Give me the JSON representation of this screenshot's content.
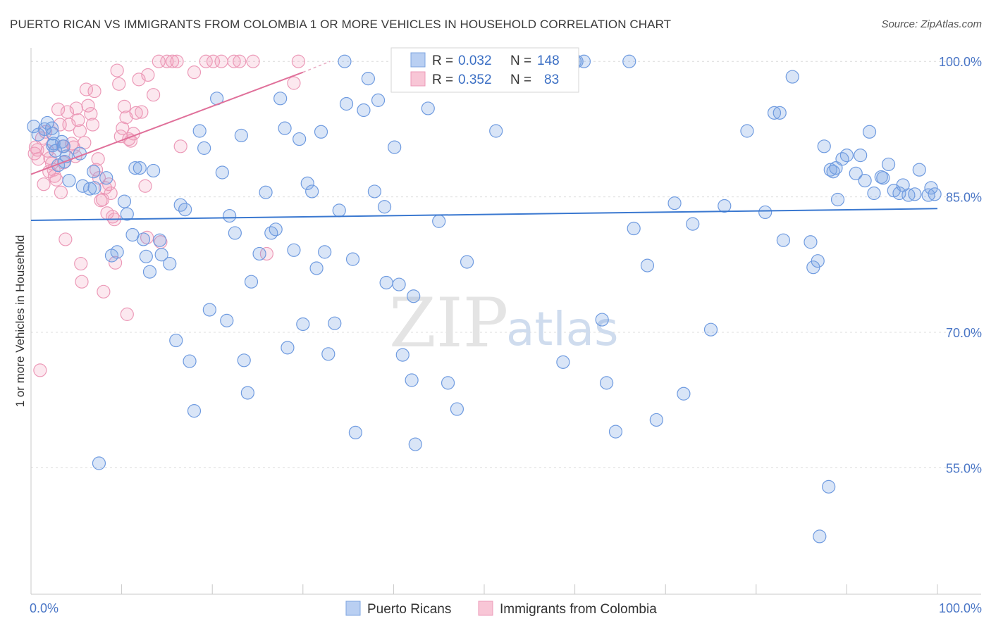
{
  "chart_data": {
    "type": "scatter",
    "title": "PUERTO RICAN VS IMMIGRANTS FROM COLOMBIA 1 OR MORE VEHICLES IN HOUSEHOLD CORRELATION CHART",
    "source": "Source: ZipAtlas.com",
    "xlabel": "",
    "ylabel": "1 or more Vehicles in Household",
    "xlim": [
      0,
      100
    ],
    "ylim": [
      41,
      101.5
    ],
    "x_tick_labels": {
      "left": "0.0%",
      "right": "100.0%"
    },
    "y_ticks": [
      {
        "value": 100,
        "label": "100.0%"
      },
      {
        "value": 85,
        "label": "85.0%"
      },
      {
        "value": 70,
        "label": "70.0%"
      },
      {
        "value": 55,
        "label": "55.0%"
      }
    ],
    "watermark": {
      "zip": "ZIP",
      "atlas": "atlas"
    },
    "colors": {
      "blue": "#6f9be0",
      "blue_line": "#3a78d0",
      "pink": "#ec9ab8",
      "pink_line": "#e0709a"
    },
    "legend_box": [
      {
        "r_label": "R =",
        "r_value": "0.032",
        "n_label": "N =",
        "n_value": "148"
      },
      {
        "r_label": "R =",
        "r_value": "0.352",
        "n_label": "N =",
        "n_value": "83"
      }
    ],
    "legend_bottom": [
      "Puerto Ricans",
      "Immigrants from Colombia"
    ],
    "series": [
      {
        "name": "Puerto Ricans",
        "trend": {
          "x": [
            0,
            100
          ],
          "y": [
            82.4,
            83.7
          ]
        },
        "points": [
          [
            0.3,
            92.8
          ],
          [
            0.8,
            91.9
          ],
          [
            1.5,
            92.5
          ],
          [
            1.8,
            93.2
          ],
          [
            2.3,
            92.6
          ],
          [
            2.4,
            90.7
          ],
          [
            2.5,
            90.9
          ],
          [
            2.7,
            90.1
          ],
          [
            2.4,
            92.0
          ],
          [
            3.0,
            88.5
          ],
          [
            3.4,
            91.1
          ],
          [
            3.6,
            90.6
          ],
          [
            3.7,
            88.9
          ],
          [
            3.9,
            89.5
          ],
          [
            4.2,
            86.8
          ],
          [
            5.4,
            89.8
          ],
          [
            5.7,
            86.2
          ],
          [
            6.5,
            85.9
          ],
          [
            6.9,
            87.8
          ],
          [
            7.0,
            86.0
          ],
          [
            8.3,
            87.1
          ],
          [
            8.9,
            78.5
          ],
          [
            9.5,
            78.9
          ],
          [
            10.3,
            84.5
          ],
          [
            10.6,
            83.1
          ],
          [
            11.2,
            80.8
          ],
          [
            11.5,
            88.2
          ],
          [
            12.0,
            88.2
          ],
          [
            12.4,
            80.3
          ],
          [
            12.7,
            78.4
          ],
          [
            13.1,
            76.7
          ],
          [
            13.5,
            87.9
          ],
          [
            14.2,
            80.2
          ],
          [
            14.4,
            78.6
          ],
          [
            15.3,
            77.6
          ],
          [
            16.0,
            69.1
          ],
          [
            16.5,
            84.1
          ],
          [
            17.0,
            83.6
          ],
          [
            17.5,
            66.8
          ],
          [
            18.0,
            61.3
          ],
          [
            18.6,
            92.3
          ],
          [
            19.1,
            90.4
          ],
          [
            19.7,
            72.5
          ],
          [
            20.5,
            95.9
          ],
          [
            21.1,
            87.7
          ],
          [
            21.6,
            71.3
          ],
          [
            21.9,
            82.9
          ],
          [
            22.5,
            81.0
          ],
          [
            23.2,
            91.8
          ],
          [
            23.5,
            66.9
          ],
          [
            23.9,
            63.3
          ],
          [
            24.3,
            75.6
          ],
          [
            25.2,
            78.7
          ],
          [
            25.9,
            85.5
          ],
          [
            26.5,
            81.0
          ],
          [
            27.0,
            81.4
          ],
          [
            27.5,
            95.9
          ],
          [
            28.0,
            92.6
          ],
          [
            28.3,
            68.3
          ],
          [
            29.0,
            79.1
          ],
          [
            29.6,
            91.4
          ],
          [
            30.0,
            70.9
          ],
          [
            30.5,
            86.5
          ],
          [
            31.0,
            85.6
          ],
          [
            31.5,
            77.1
          ],
          [
            32.0,
            92.2
          ],
          [
            32.4,
            78.9
          ],
          [
            32.8,
            67.6
          ],
          [
            33.5,
            71.0
          ],
          [
            34.0,
            83.5
          ],
          [
            34.6,
            100.0
          ],
          [
            34.8,
            95.3
          ],
          [
            35.5,
            78.1
          ],
          [
            35.8,
            58.9
          ],
          [
            36.7,
            94.6
          ],
          [
            37.2,
            98.1
          ],
          [
            37.9,
            85.6
          ],
          [
            38.3,
            95.7
          ],
          [
            39.0,
            83.9
          ],
          [
            39.2,
            75.5
          ],
          [
            40.1,
            90.5
          ],
          [
            40.6,
            75.3
          ],
          [
            41.0,
            67.5
          ],
          [
            42.0,
            64.7
          ],
          [
            42.2,
            74.0
          ],
          [
            42.4,
            57.6
          ],
          [
            43.8,
            94.8
          ],
          [
            44.0,
            100.0
          ],
          [
            45.0,
            82.3
          ],
          [
            45.5,
            100.0
          ],
          [
            46.0,
            64.4
          ],
          [
            47.0,
            61.5
          ],
          [
            48.1,
            77.8
          ],
          [
            50.2,
            100.0
          ],
          [
            51.3,
            92.3
          ],
          [
            52.6,
            100.0
          ],
          [
            58.7,
            66.7
          ],
          [
            60.0,
            100.0
          ],
          [
            60.2,
            100.0
          ],
          [
            61.0,
            100.0
          ],
          [
            63.0,
            71.4
          ],
          [
            63.5,
            64.4
          ],
          [
            64.5,
            59.0
          ],
          [
            66.0,
            100.0
          ],
          [
            66.5,
            81.5
          ],
          [
            68.0,
            77.4
          ],
          [
            69.0,
            60.3
          ],
          [
            71.0,
            84.3
          ],
          [
            72.0,
            63.2
          ],
          [
            73.0,
            82.0
          ],
          [
            75.0,
            70.3
          ],
          [
            76.5,
            84.0
          ],
          [
            79.0,
            92.3
          ],
          [
            81.0,
            83.3
          ],
          [
            82.0,
            94.3
          ],
          [
            82.6,
            94.3
          ],
          [
            83.0,
            80.2
          ],
          [
            84.0,
            98.3
          ],
          [
            86.0,
            80.0
          ],
          [
            86.3,
            77.2
          ],
          [
            86.8,
            77.9
          ],
          [
            87.5,
            90.6
          ],
          [
            88.2,
            88.0
          ],
          [
            88.5,
            87.8
          ],
          [
            89.0,
            84.7
          ],
          [
            89.5,
            89.2
          ],
          [
            90.0,
            89.6
          ],
          [
            91.0,
            87.6
          ],
          [
            91.5,
            89.6
          ],
          [
            92.0,
            86.8
          ],
          [
            92.5,
            92.2
          ],
          [
            93.0,
            85.4
          ],
          [
            93.8,
            87.2
          ],
          [
            94.0,
            87.1
          ],
          [
            94.6,
            88.6
          ],
          [
            95.2,
            85.7
          ],
          [
            95.8,
            85.4
          ],
          [
            96.2,
            86.3
          ],
          [
            96.8,
            85.2
          ],
          [
            97.5,
            85.3
          ],
          [
            98.0,
            88.0
          ],
          [
            99.0,
            85.2
          ],
          [
            99.3,
            86.0
          ],
          [
            99.7,
            85.3
          ],
          [
            88.0,
            52.9
          ],
          [
            87.0,
            47.4
          ],
          [
            88.8,
            88.2
          ],
          [
            7.5,
            55.5
          ]
        ]
      },
      {
        "name": "Immigrants from Colombia",
        "trend": {
          "x": [
            0,
            30
          ],
          "y": [
            87.5,
            98.8
          ]
        },
        "trend_dashed": {
          "x": [
            30,
            33
          ],
          "y": [
            98.8,
            100.0
          ]
        },
        "points": [
          [
            0.4,
            89.8
          ],
          [
            0.5,
            90.5
          ],
          [
            0.7,
            90.2
          ],
          [
            0.8,
            89.2
          ],
          [
            1.0,
            65.8
          ],
          [
            1.2,
            91.5
          ],
          [
            1.4,
            86.4
          ],
          [
            1.6,
            92.2
          ],
          [
            1.8,
            90.1
          ],
          [
            2.0,
            87.8
          ],
          [
            2.1,
            89.3
          ],
          [
            2.3,
            88.7
          ],
          [
            2.5,
            88.0
          ],
          [
            2.6,
            87.3
          ],
          [
            2.8,
            86.9
          ],
          [
            3.0,
            94.7
          ],
          [
            3.2,
            93.0
          ],
          [
            3.3,
            85.5
          ],
          [
            3.5,
            90.6
          ],
          [
            3.6,
            88.8
          ],
          [
            3.8,
            80.3
          ],
          [
            4.0,
            94.4
          ],
          [
            4.2,
            93.0
          ],
          [
            4.5,
            90.9
          ],
          [
            4.7,
            90.5
          ],
          [
            4.9,
            89.5
          ],
          [
            5.0,
            94.8
          ],
          [
            5.2,
            93.5
          ],
          [
            5.4,
            92.3
          ],
          [
            5.5,
            77.6
          ],
          [
            5.6,
            75.6
          ],
          [
            5.9,
            91.0
          ],
          [
            6.1,
            96.9
          ],
          [
            6.3,
            95.1
          ],
          [
            6.6,
            94.2
          ],
          [
            6.8,
            93.0
          ],
          [
            7.0,
            96.7
          ],
          [
            7.2,
            88.0
          ],
          [
            7.4,
            89.2
          ],
          [
            7.5,
            87.1
          ],
          [
            7.7,
            84.6
          ],
          [
            7.9,
            84.7
          ],
          [
            8.0,
            74.5
          ],
          [
            8.2,
            86.0
          ],
          [
            8.4,
            83.2
          ],
          [
            8.6,
            86.4
          ],
          [
            8.8,
            85.4
          ],
          [
            9.0,
            82.8
          ],
          [
            9.2,
            82.5
          ],
          [
            9.3,
            77.7
          ],
          [
            9.5,
            99.0
          ],
          [
            9.7,
            97.5
          ],
          [
            9.9,
            91.7
          ],
          [
            10.1,
            92.6
          ],
          [
            10.3,
            95.0
          ],
          [
            10.5,
            93.8
          ],
          [
            10.6,
            72.0
          ],
          [
            10.8,
            91.4
          ],
          [
            11.0,
            91.2
          ],
          [
            11.3,
            92.0
          ],
          [
            11.6,
            94.3
          ],
          [
            11.9,
            98.0
          ],
          [
            12.2,
            94.4
          ],
          [
            12.6,
            86.2
          ],
          [
            12.9,
            98.5
          ],
          [
            13.5,
            96.3
          ],
          [
            14.1,
            100.0
          ],
          [
            14.3,
            80.0
          ],
          [
            15.0,
            100.0
          ],
          [
            15.6,
            100.0
          ],
          [
            16.1,
            100.0
          ],
          [
            16.5,
            90.6
          ],
          [
            18.0,
            98.8
          ],
          [
            19.3,
            100.0
          ],
          [
            20.1,
            100.0
          ],
          [
            21.0,
            100.0
          ],
          [
            22.4,
            100.0
          ],
          [
            23.0,
            100.0
          ],
          [
            24.5,
            100.0
          ],
          [
            26.0,
            78.7
          ],
          [
            29.0,
            97.6
          ],
          [
            29.5,
            100.0
          ],
          [
            12.8,
            80.5
          ]
        ]
      }
    ]
  }
}
